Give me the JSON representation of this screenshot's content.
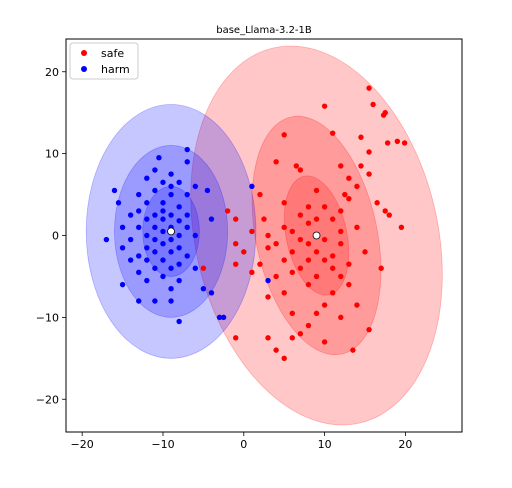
{
  "chart_data": {
    "type": "scatter",
    "title": "base_Llama-3.2-1B",
    "xlabel": "",
    "ylabel": "",
    "xlim": [
      -22,
      27
    ],
    "ylim": [
      -24,
      24
    ],
    "xticks": [
      -20,
      -10,
      0,
      10,
      20
    ],
    "yticks": [
      -20,
      -10,
      0,
      10,
      20
    ],
    "grid": false,
    "legend": {
      "placement": "top-left",
      "entries": [
        "safe",
        "harm"
      ]
    },
    "series": [
      {
        "name": "safe",
        "color": "#ff0000",
        "centroid": [
          9.0,
          0.0
        ],
        "ellipses": [
          {
            "sigma": 1,
            "width": 7.5,
            "height": 14.8,
            "angle_deg": 12
          },
          {
            "sigma": 2,
            "width": 15.0,
            "height": 29.6,
            "angle_deg": 12
          },
          {
            "sigma": 3,
            "width": 30.0,
            "height": 47.0,
            "angle_deg": 13
          }
        ],
        "points": [
          [
            15.5,
            18
          ],
          [
            16,
            16
          ],
          [
            17.5,
            15
          ],
          [
            17.3,
            14.7
          ],
          [
            10,
            15.8
          ],
          [
            5,
            12.3
          ],
          [
            11,
            12.5
          ],
          [
            14.5,
            12
          ],
          [
            17.8,
            11.3
          ],
          [
            19,
            11.5
          ],
          [
            19.9,
            11.3
          ],
          [
            15.5,
            10.2
          ],
          [
            4,
            9
          ],
          [
            12,
            8.5
          ],
          [
            6.5,
            8.5
          ],
          [
            14.5,
            8.5
          ],
          [
            7,
            8
          ],
          [
            15.5,
            7.5
          ],
          [
            13,
            7
          ],
          [
            14,
            6
          ],
          [
            9,
            5.5
          ],
          [
            12.5,
            5
          ],
          [
            13,
            4.5
          ],
          [
            2,
            5
          ],
          [
            16.5,
            4
          ],
          [
            5,
            4
          ],
          [
            8,
            3.5
          ],
          [
            10,
            3.5
          ],
          [
            12,
            3
          ],
          [
            17.5,
            3
          ],
          [
            18,
            2.5
          ],
          [
            7,
            2.5
          ],
          [
            9,
            2
          ],
          [
            11,
            2
          ],
          [
            -2,
            3
          ],
          [
            -1,
            2
          ],
          [
            2.5,
            2
          ],
          [
            8,
            1.5
          ],
          [
            14,
            1
          ],
          [
            5,
            1
          ],
          [
            6,
            0.5
          ],
          [
            12,
            0.5
          ],
          [
            19.5,
            1
          ],
          [
            1,
            0.5
          ],
          [
            3,
            0
          ],
          [
            7,
            -0.5
          ],
          [
            10,
            -0.5
          ],
          [
            4,
            -1
          ],
          [
            8,
            -1
          ],
          [
            12,
            -1
          ],
          [
            -1,
            -1
          ],
          [
            3,
            -1.5
          ],
          [
            6,
            -2
          ],
          [
            9,
            -2
          ],
          [
            11,
            -2.5
          ],
          [
            15,
            -2
          ],
          [
            0,
            -2
          ],
          [
            5,
            -3
          ],
          [
            8,
            -3
          ],
          [
            10,
            -3
          ],
          [
            13,
            -3.5
          ],
          [
            -1,
            -3.5
          ],
          [
            2,
            -3.5
          ],
          [
            7,
            -4
          ],
          [
            11,
            -4
          ],
          [
            6,
            -4.5
          ],
          [
            4,
            -5
          ],
          [
            9,
            -5
          ],
          [
            12,
            -5
          ],
          [
            -5,
            -4
          ],
          [
            1,
            -4.5
          ],
          [
            17,
            -4
          ],
          [
            8,
            -6
          ],
          [
            13,
            -6
          ],
          [
            5,
            -7
          ],
          [
            11,
            -7
          ],
          [
            3,
            -7.5
          ],
          [
            10,
            -8.5
          ],
          [
            14,
            -8.5
          ],
          [
            9,
            -9.5
          ],
          [
            6,
            -9.5
          ],
          [
            12,
            -10
          ],
          [
            8,
            -11
          ],
          [
            7,
            -12
          ],
          [
            15.5,
            -11.5
          ],
          [
            3,
            -12.5
          ],
          [
            6,
            -12.5
          ],
          [
            10,
            -13
          ],
          [
            13.5,
            -14
          ],
          [
            4,
            -14
          ],
          [
            -1,
            -12.5
          ],
          [
            5,
            -15
          ]
        ]
      },
      {
        "name": "harm",
        "color": "#0000ff",
        "centroid": [
          -9.0,
          0.5
        ],
        "ellipses": [
          {
            "sigma": 1,
            "width": 7.0,
            "height": 11.0,
            "angle_deg": 0
          },
          {
            "sigma": 2,
            "width": 14.0,
            "height": 21.0,
            "angle_deg": 0
          },
          {
            "sigma": 3,
            "width": 21.0,
            "height": 31.0,
            "angle_deg": 0
          }
        ],
        "points": [
          [
            -7,
            10.5
          ],
          [
            -10.5,
            9.5
          ],
          [
            -7,
            9
          ],
          [
            -11,
            8
          ],
          [
            -9,
            7.5
          ],
          [
            -12,
            7
          ],
          [
            -10,
            6.5
          ],
          [
            -8,
            6.5
          ],
          [
            -9,
            6
          ],
          [
            -6,
            6
          ],
          [
            -11,
            5.5
          ],
          [
            -13,
            5
          ],
          [
            -9,
            5
          ],
          [
            -7,
            5
          ],
          [
            -4.5,
            5.5
          ],
          [
            -15.5,
            4
          ],
          [
            -12,
            4
          ],
          [
            -10,
            4
          ],
          [
            -8,
            3.5
          ],
          [
            -13,
            3
          ],
          [
            -10,
            3
          ],
          [
            -11,
            2.5
          ],
          [
            -9,
            2.5
          ],
          [
            -7,
            2.5
          ],
          [
            -14,
            2.5
          ],
          [
            -4,
            2
          ],
          [
            -12,
            2
          ],
          [
            -10,
            2
          ],
          [
            -8,
            1.8
          ],
          [
            -9,
            1
          ],
          [
            -11,
            1
          ],
          [
            -13,
            1
          ],
          [
            -7,
            1
          ],
          [
            -15,
            1
          ],
          [
            -10,
            0.5
          ],
          [
            -12,
            0
          ],
          [
            -8,
            0
          ],
          [
            -6,
            0
          ],
          [
            -14,
            -0.5
          ],
          [
            -11,
            -0.5
          ],
          [
            -9,
            -0.5
          ],
          [
            -17,
            -0.5
          ],
          [
            -10,
            -1
          ],
          [
            -12,
            -1.5
          ],
          [
            -8,
            -1.5
          ],
          [
            -15,
            -1.5
          ],
          [
            -11,
            -2
          ],
          [
            -9,
            -2
          ],
          [
            -13,
            -2.5
          ],
          [
            -7,
            -2.5
          ],
          [
            -10,
            -3
          ],
          [
            -12,
            -3
          ],
          [
            -14,
            -3
          ],
          [
            -8,
            -3.5
          ],
          [
            -11,
            -4
          ],
          [
            -9,
            -4
          ],
          [
            -13,
            -4.5
          ],
          [
            -6,
            -4
          ],
          [
            -10,
            -5
          ],
          [
            -12,
            -5.5
          ],
          [
            -8,
            -5.5
          ],
          [
            -15,
            -6
          ],
          [
            -5,
            -6.5
          ],
          [
            -9,
            -6.5
          ],
          [
            -4,
            -7
          ],
          [
            -11,
            -8
          ],
          [
            -13,
            -8
          ],
          [
            -9,
            -8
          ],
          [
            -3,
            -10
          ],
          [
            -2.5,
            -10
          ],
          [
            -8,
            -10.5
          ],
          [
            3,
            -5.5
          ],
          [
            1,
            6
          ],
          [
            -16,
            5.5
          ]
        ]
      }
    ]
  }
}
